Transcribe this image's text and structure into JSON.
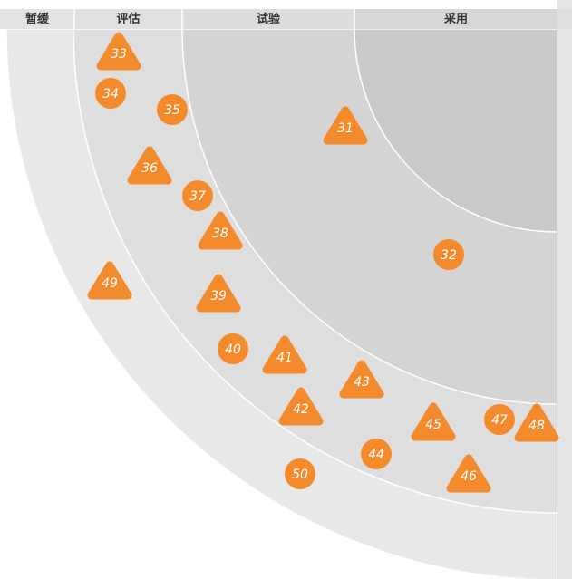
{
  "rings": [
    {
      "id": "hold",
      "label": "暂缓"
    },
    {
      "id": "assess",
      "label": "评估"
    },
    {
      "id": "trial",
      "label": "试验"
    },
    {
      "id": "adopt",
      "label": "采用"
    }
  ],
  "colors": {
    "blip": "#f38a2c",
    "blip_text": "#ffffff",
    "ring_adopt": "#c9c9c9",
    "ring_trial": "#d4d4d4",
    "ring_assess": "#dedede",
    "ring_hold": "#e8e8e8",
    "ring_divider": "#ffffff",
    "header_bar": "#dedede"
  },
  "blips": [
    {
      "number": "31",
      "shape": "triangle"
    },
    {
      "number": "32",
      "shape": "circle"
    },
    {
      "number": "33",
      "shape": "triangle"
    },
    {
      "number": "34",
      "shape": "circle"
    },
    {
      "number": "35",
      "shape": "circle"
    },
    {
      "number": "36",
      "shape": "triangle"
    },
    {
      "number": "37",
      "shape": "circle"
    },
    {
      "number": "38",
      "shape": "triangle"
    },
    {
      "number": "39",
      "shape": "triangle"
    },
    {
      "number": "40",
      "shape": "circle"
    },
    {
      "number": "41",
      "shape": "triangle"
    },
    {
      "number": "42",
      "shape": "triangle"
    },
    {
      "number": "43",
      "shape": "triangle"
    },
    {
      "number": "44",
      "shape": "circle"
    },
    {
      "number": "45",
      "shape": "triangle"
    },
    {
      "number": "46",
      "shape": "triangle"
    },
    {
      "number": "47",
      "shape": "circle"
    },
    {
      "number": "48",
      "shape": "triangle"
    },
    {
      "number": "49",
      "shape": "triangle"
    },
    {
      "number": "50",
      "shape": "circle"
    }
  ]
}
